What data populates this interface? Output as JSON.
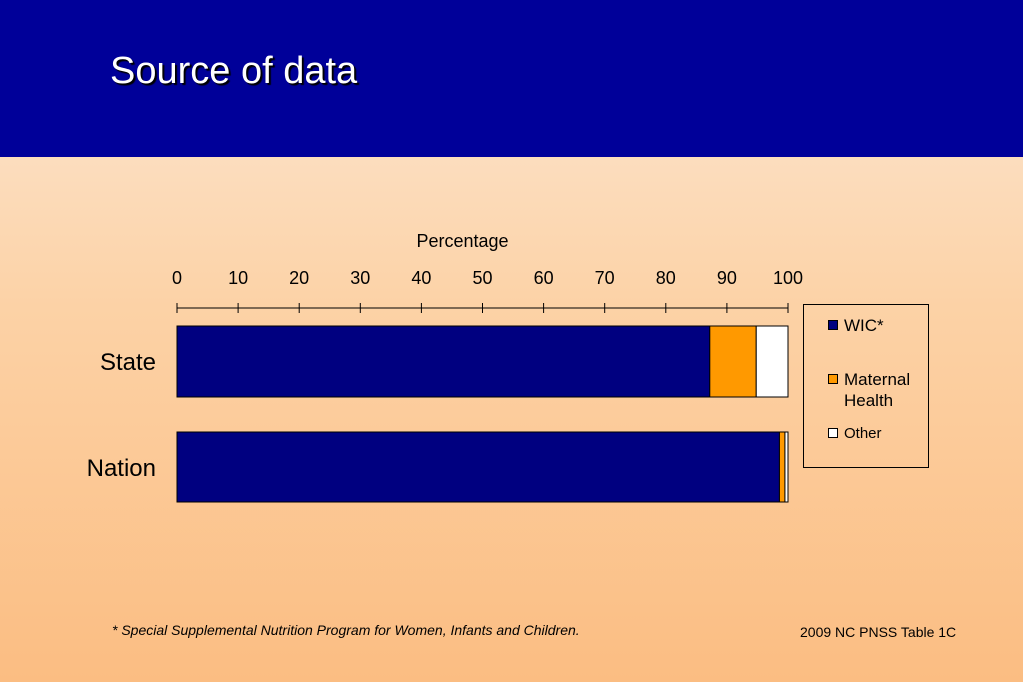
{
  "slide": {
    "title": "Source of data",
    "footnote": "*  Special Supplemental Nutrition Program for Women, Infants and Children.",
    "source": "2009 NC PNSS Table 1C"
  },
  "colors": {
    "header_bg": "#000099",
    "wic": "#000080",
    "maternal_health": "#ff9900",
    "other": "#ffffff"
  },
  "chart_data": {
    "type": "bar",
    "orientation": "horizontal",
    "stacked": true,
    "xlabel": "Percentage",
    "xlim": [
      0,
      100
    ],
    "xticks": [
      0,
      10,
      20,
      30,
      40,
      50,
      60,
      70,
      80,
      90,
      100
    ],
    "xaxis_position": "top",
    "grid": false,
    "legend_position": "right",
    "categories": [
      "State",
      "Nation"
    ],
    "series": [
      {
        "name": "WIC*",
        "color": "#000080",
        "values": [
          87.2,
          98.6
        ]
      },
      {
        "name": "Maternal Health",
        "color": "#ff9900",
        "values": [
          7.6,
          0.9
        ]
      },
      {
        "name": "Other",
        "color": "#ffffff",
        "values": [
          5.2,
          0.5
        ]
      }
    ]
  }
}
